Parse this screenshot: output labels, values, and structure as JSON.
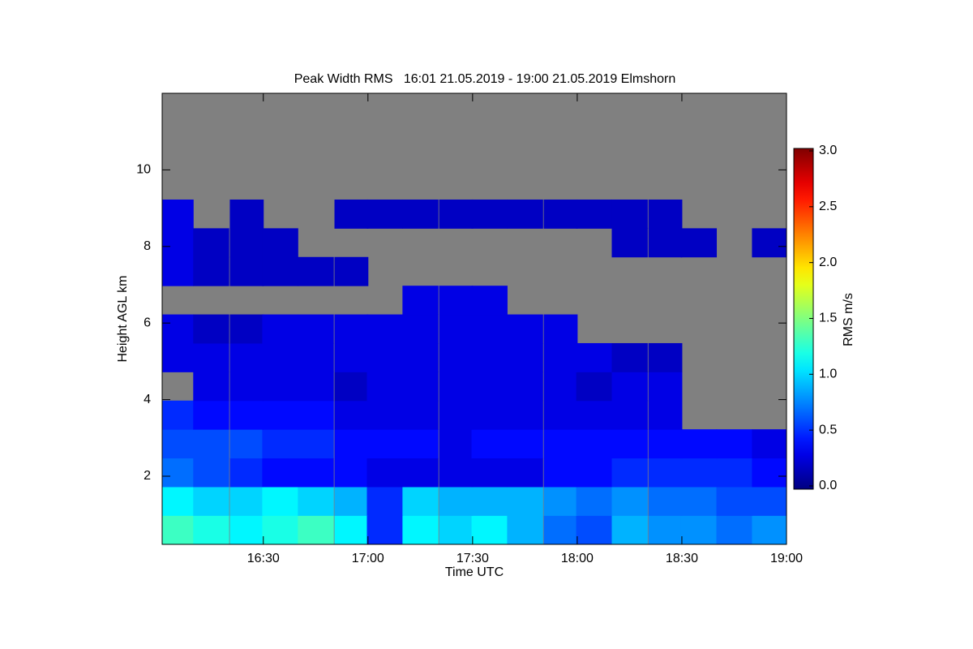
{
  "chart_data": {
    "type": "heatmap",
    "title": "Peak Width RMS   16:01 21.05.2019 - 19:00 21.05.2019 Elmshorn",
    "x_label": "Time UTC",
    "y_label": "Height AGL km",
    "colorbar_label": "RMS m/s",
    "colormap": "jet",
    "nodata_color": "#808080",
    "xlim": [
      16.0167,
      19.0
    ],
    "ylim": [
      0.22,
      12
    ],
    "xticks": [
      {
        "value": 16.5,
        "label": "16:30"
      },
      {
        "value": 17.0,
        "label": "17:00"
      },
      {
        "value": 17.5,
        "label": "17:30"
      },
      {
        "value": 18.0,
        "label": "18:00"
      },
      {
        "value": 18.5,
        "label": "18:30"
      },
      {
        "value": 19.0,
        "label": "19:00"
      }
    ],
    "yticks": [
      2,
      4,
      6,
      8,
      10
    ],
    "zlim": [
      0,
      3
    ],
    "zticks": [
      {
        "value": 0,
        "label": "0.0"
      },
      0.5,
      {
        "value": 1,
        "label": "1.0"
      },
      1.5,
      {
        "value": 2,
        "label": "2.0"
      },
      2.5,
      {
        "value": 3,
        "label": "3.0"
      }
    ],
    "x": [
      16.08,
      16.25,
      16.42,
      16.58,
      16.75,
      16.92,
      17.08,
      17.25,
      17.42,
      17.58,
      17.75,
      17.92,
      18.08,
      18.25,
      18.42,
      18.58,
      18.75,
      18.92
    ],
    "y": [
      0.6,
      1.35,
      2.1,
      2.85,
      3.6,
      4.35,
      5.1,
      5.85,
      6.6,
      7.35,
      8.1,
      8.85,
      9.6,
      10.35,
      11.1,
      11.85
    ],
    "z": [
      [
        1.3,
        1.2,
        1.1,
        1.2,
        1.3,
        1.1,
        0.5,
        1.1,
        1.0,
        1.1,
        0.9,
        0.7,
        0.6,
        0.9,
        0.8,
        0.8,
        0.7,
        0.8
      ],
      [
        1.1,
        1.0,
        1.0,
        1.1,
        1.0,
        0.9,
        0.5,
        1.0,
        0.9,
        0.9,
        0.9,
        0.8,
        0.7,
        0.8,
        0.7,
        0.7,
        0.6,
        0.6
      ],
      [
        0.7,
        0.6,
        0.5,
        0.4,
        0.4,
        0.4,
        0.3,
        0.3,
        0.3,
        0.3,
        0.3,
        0.4,
        0.4,
        0.5,
        0.5,
        0.5,
        0.5,
        0.4
      ],
      [
        0.6,
        0.6,
        0.6,
        0.5,
        0.5,
        0.4,
        0.4,
        0.4,
        0.3,
        0.4,
        0.4,
        0.4,
        0.4,
        0.4,
        0.4,
        0.4,
        0.4,
        0.3
      ],
      [
        0.5,
        0.4,
        0.4,
        0.4,
        0.4,
        0.3,
        0.3,
        0.3,
        0.3,
        0.3,
        0.3,
        0.3,
        0.3,
        0.3,
        0.3,
        null,
        null,
        null
      ],
      [
        null,
        0.3,
        0.3,
        0.3,
        0.3,
        0.2,
        0.3,
        0.3,
        0.3,
        0.3,
        0.3,
        0.3,
        0.2,
        0.3,
        0.3,
        null,
        null,
        null
      ],
      [
        0.3,
        0.3,
        0.3,
        0.3,
        0.3,
        0.3,
        0.3,
        0.3,
        0.3,
        0.3,
        0.3,
        0.3,
        0.3,
        0.2,
        0.2,
        null,
        null,
        null
      ],
      [
        0.3,
        0.2,
        0.2,
        0.3,
        0.3,
        0.3,
        0.3,
        0.3,
        0.3,
        0.3,
        0.3,
        0.3,
        null,
        null,
        null,
        null,
        null,
        null
      ],
      [
        null,
        null,
        null,
        null,
        null,
        null,
        null,
        0.3,
        0.3,
        0.3,
        null,
        null,
        null,
        null,
        null,
        null,
        null,
        null
      ],
      [
        0.3,
        0.2,
        0.2,
        0.2,
        0.2,
        0.2,
        null,
        null,
        null,
        null,
        null,
        null,
        null,
        null,
        null,
        null,
        null,
        null
      ],
      [
        0.3,
        0.2,
        0.2,
        0.2,
        null,
        null,
        null,
        null,
        null,
        null,
        null,
        null,
        null,
        0.2,
        0.2,
        0.2,
        null,
        0.2
      ],
      [
        0.3,
        null,
        0.2,
        null,
        null,
        0.2,
        0.2,
        0.2,
        0.2,
        0.2,
        0.2,
        0.2,
        0.2,
        0.2,
        0.2,
        null,
        null,
        null
      ],
      [
        null,
        null,
        null,
        null,
        null,
        null,
        null,
        null,
        null,
        null,
        null,
        null,
        null,
        null,
        null,
        null,
        null,
        null
      ],
      [
        null,
        null,
        null,
        null,
        null,
        null,
        null,
        null,
        null,
        null,
        null,
        null,
        null,
        null,
        null,
        null,
        null,
        null
      ],
      [
        null,
        null,
        null,
        null,
        null,
        null,
        null,
        null,
        null,
        null,
        null,
        null,
        null,
        null,
        null,
        null,
        null,
        null
      ],
      [
        null,
        null,
        null,
        null,
        null,
        null,
        null,
        null,
        null,
        null,
        null,
        null,
        null,
        null,
        null,
        null,
        null,
        null
      ]
    ]
  }
}
